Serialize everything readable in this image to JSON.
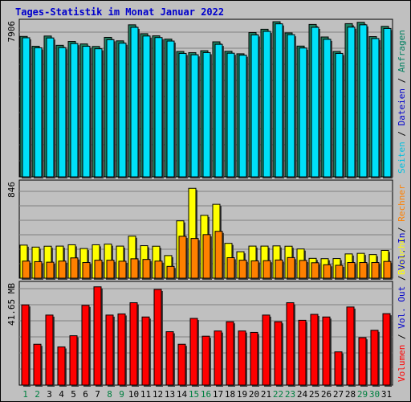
{
  "title": "Tages-Statistik im Monat Januar 2022",
  "chart_data": {
    "type": "bar",
    "title": "Tages-Statistik im Monat Januar 2022",
    "categories": [
      "1",
      "2",
      "3",
      "4",
      "5",
      "6",
      "7",
      "8",
      "9",
      "10",
      "11",
      "12",
      "13",
      "14",
      "15",
      "16",
      "17",
      "18",
      "19",
      "20",
      "21",
      "22",
      "23",
      "24",
      "25",
      "26",
      "27",
      "28",
      "29",
      "30",
      "31"
    ],
    "weekend_days": [
      "1",
      "2",
      "8",
      "9",
      "15",
      "16",
      "22",
      "23",
      "29",
      "30"
    ],
    "panels": [
      {
        "id": "top",
        "ymax_label": "7906",
        "ymax": 7906,
        "right_labels": [
          {
            "text": "Anfragen",
            "color": "#008060"
          },
          {
            "text": " / ",
            "color": "#000000"
          },
          {
            "text": "Dateien",
            "color": "#0000cc"
          },
          {
            "text": " / ",
            "color": "#000000"
          },
          {
            "text": "Seiten",
            "color": "#00c0e0"
          }
        ],
        "series": [
          {
            "name": "Anfragen",
            "color": "#208060",
            "values": [
              7270,
              6760,
              7290,
              6810,
              7010,
              6880,
              6750,
              7220,
              7040,
              7870,
              7410,
              7300,
              7130,
              6490,
              6430,
              6530,
              6990,
              6500,
              6370,
              7470,
              7640,
              8030,
              7450,
              6770,
              7890,
              7240,
              6490,
              7930,
              8000,
              7260,
              7790
            ]
          },
          {
            "name": "Dateien",
            "color": "#00e0f8",
            "values": [
              7200,
              6680,
              7190,
              6690,
              6900,
              6760,
              6630,
              7100,
              6920,
              7740,
              7290,
              7210,
              7030,
              6390,
              6320,
              6430,
              6860,
              6400,
              6300,
              7350,
              7530,
              7920,
              7360,
              6670,
              7740,
              7120,
              6390,
              7750,
              7870,
              7160,
              7680
            ]
          }
        ]
      },
      {
        "id": "middle",
        "ymax_label": "846",
        "ymax": 846,
        "right_labels": [
          {
            "text": "Rechner",
            "color": "#ff8000"
          },
          {
            "text": " / ",
            "color": "#000000"
          },
          {
            "text": "Besuche",
            "color": "#ffff00"
          }
        ],
        "series": [
          {
            "name": "Besuche",
            "color": "#ffff00",
            "values": [
              300,
              282,
              290,
              291,
              303,
              269,
              303,
              309,
              291,
              381,
              295,
              290,
              205,
              520,
              815,
              570,
              670,
              316,
              240,
              291,
              291,
              293,
              290,
              265,
              180,
              177,
              178,
              220,
              225,
              214,
              252
            ]
          },
          {
            "name": "Rechner",
            "color": "#ff8000",
            "values": [
              155,
              150,
              145,
              155,
              184,
              142,
              163,
              163,
              154,
              176,
              170,
              155,
              107,
              380,
              360,
              395,
              425,
              186,
              163,
              157,
              159,
              165,
              187,
              161,
              140,
              122,
              117,
              142,
              142,
              142,
              152
            ]
          }
        ]
      },
      {
        "id": "bottom",
        "ymax_label": "41.65 MB",
        "ymax": 41.65,
        "right_labels": [
          {
            "text": "Vol. In",
            "color": "#0000cc"
          },
          {
            "text": " / ",
            "color": "#000000"
          },
          {
            "text": "Vol. Out",
            "color": "#0000cc"
          },
          {
            "text": " / ",
            "color": "#000000"
          },
          {
            "text": "Volumen",
            "color": "#ff0000"
          }
        ],
        "series": [
          {
            "name": "Volumen",
            "color": "#ff0000",
            "values": [
              33.8,
              17.2,
              29.5,
              16.1,
              20.8,
              33.6,
              41.4,
              29.5,
              30.0,
              34.7,
              28.7,
              40.3,
              22.5,
              17.2,
              28.1,
              20.6,
              22.8,
              26.7,
              22.8,
              22.2,
              29.5,
              26.7,
              34.7,
              27.3,
              29.8,
              28.7,
              14.0,
              32.9,
              20.0,
              23.1,
              30.1
            ]
          }
        ]
      }
    ]
  }
}
